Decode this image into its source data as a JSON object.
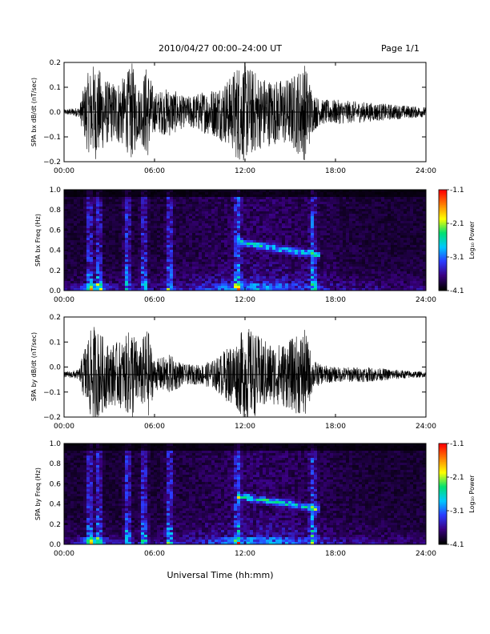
{
  "header": {
    "title": "2010/04/27  00:00–24:00 UT",
    "page": "Page 1/1"
  },
  "x_axis": {
    "label": "Universal Time (hh:mm)",
    "ticks": [
      "00:00",
      "06:00",
      "12:00",
      "18:00",
      "24:00"
    ]
  },
  "colorbar": {
    "label": "Log₁₀ Power",
    "ticks": [
      "-1.1",
      "-2.1",
      "-3.1",
      "-4.1"
    ],
    "colors": [
      "#000000",
      "#3a0080",
      "#2a3cff",
      "#00c8ff",
      "#00e070",
      "#ffff00",
      "#ff8000",
      "#ff0000"
    ]
  },
  "panels": {
    "bx_wave": {
      "ylabel": "SPA bx dB/dt (nT/sec)",
      "yticks": [
        "0.2",
        "0.1",
        "0.0",
        "−0.1",
        "−0.2"
      ]
    },
    "bx_spec": {
      "ylabel": "SPA bx Freq (Hz)",
      "yticks": [
        "1.0",
        "0.8",
        "0.6",
        "0.4",
        "0.2",
        "0.0"
      ]
    },
    "by_wave": {
      "ylabel": "SPA by dB/dt (nT/sec)",
      "yticks": [
        "0.2",
        "0.1",
        "0.0",
        "−0.1",
        "−0.2"
      ]
    },
    "by_spec": {
      "ylabel": "SPA by Freq (Hz)",
      "yticks": [
        "1.0",
        "0.8",
        "0.6",
        "0.4",
        "0.2",
        "0.0"
      ]
    }
  },
  "chart_data": [
    {
      "type": "line",
      "ylabel": "SPA bx dB/dt (nT/sec)",
      "xlabel": "Universal Time (hh:mm)",
      "xlim": [
        0,
        24
      ],
      "ylim": [
        -0.2,
        0.2
      ],
      "center": 0.0,
      "envelope_hours": [
        0,
        1,
        1.5,
        2,
        3,
        4,
        4.5,
        5,
        5.5,
        6,
        7,
        8,
        9,
        10,
        11,
        11.5,
        12,
        13,
        14,
        15,
        16,
        16.5,
        17,
        18,
        20,
        22,
        24
      ],
      "envelope_amp": [
        0.01,
        0.02,
        0.15,
        0.2,
        0.12,
        0.14,
        0.2,
        0.1,
        0.2,
        0.08,
        0.1,
        0.06,
        0.08,
        0.1,
        0.14,
        0.2,
        0.2,
        0.15,
        0.13,
        0.14,
        0.2,
        0.08,
        0.05,
        0.05,
        0.04,
        0.03,
        0.02
      ]
    },
    {
      "type": "heatmap",
      "ylabel": "SPA bx Freq (Hz)",
      "xlim": [
        0,
        24
      ],
      "ylim": [
        0,
        1.0
      ],
      "zlim": [
        -4.1,
        -1.1
      ],
      "bursts_hours": [
        1.7,
        2.3,
        4.2,
        5.3,
        7.0,
        11.5,
        16.5
      ],
      "band": {
        "start_hour": 11.5,
        "end_hour": 17.0,
        "freq_start": 0.48,
        "freq_end": 0.35
      }
    },
    {
      "type": "line",
      "ylabel": "SPA by dB/dt (nT/sec)",
      "xlabel": "Universal Time (hh:mm)",
      "xlim": [
        0,
        24
      ],
      "ylim": [
        -0.2,
        0.2
      ],
      "center": -0.03,
      "envelope_hours": [
        0,
        1,
        1.5,
        2,
        3,
        4,
        4.5,
        5,
        5.5,
        6,
        7,
        8,
        9,
        10,
        11,
        11.5,
        12,
        13,
        14,
        15,
        16,
        16.5,
        17,
        18,
        20,
        22,
        24
      ],
      "envelope_amp": [
        0.01,
        0.02,
        0.15,
        0.2,
        0.12,
        0.14,
        0.2,
        0.1,
        0.2,
        0.06,
        0.08,
        0.04,
        0.04,
        0.06,
        0.12,
        0.14,
        0.2,
        0.15,
        0.12,
        0.14,
        0.18,
        0.06,
        0.04,
        0.03,
        0.03,
        0.02,
        0.01
      ]
    },
    {
      "type": "heatmap",
      "ylabel": "SPA by Freq (Hz)",
      "xlim": [
        0,
        24
      ],
      "ylim": [
        0,
        1.0
      ],
      "zlim": [
        -4.1,
        -1.1
      ],
      "bursts_hours": [
        1.7,
        2.3,
        4.2,
        5.3,
        7.0,
        11.5,
        16.5
      ],
      "band": {
        "start_hour": 11.5,
        "end_hour": 17.0,
        "freq_start": 0.48,
        "freq_end": 0.35
      }
    }
  ]
}
